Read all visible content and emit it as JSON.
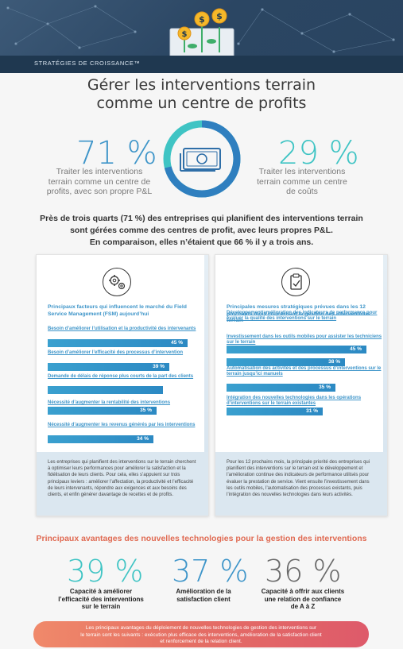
{
  "banner": {
    "label": "STRATÉGIES DE CROISSANCE™"
  },
  "title": {
    "line1": "Gérer les interventions terrain",
    "line2": "comme un centre de profits"
  },
  "stat_left": {
    "value": "71 %",
    "desc_line1": "Traiter les interventions",
    "desc_line2": "terrain comme un centre de",
    "desc_line3": "profits, avec son propre P&L"
  },
  "stat_right": {
    "value": "29 %",
    "desc_line1": "Traiter les interventions",
    "desc_line2": "terrain comme un centre",
    "desc_line3": "de coûts"
  },
  "ring_share": 0.71,
  "lead": {
    "line1": "Près de trois quarts (71 %) des entreprises qui planifient des interventions terrain",
    "line2": "sont gérées comme des centres de profit, avec leurs propres P&L.",
    "line3": "En comparaison, elles n’étaient que 66 % il y a trois ans."
  },
  "card_left": {
    "heading": "Principaux facteurs qui influencent le marché du Field Service Management (FSM) aujourd’hui",
    "items": [
      {
        "label": "Besoin d’améliorer l’utilisation et la productivité des intervenants",
        "value": 45,
        "text": "45 %"
      },
      {
        "label": "Besoin d’améliorer l’efficacité des processus d’intervention",
        "value": 39,
        "text": "39 %"
      },
      {
        "label": "Demande de délais de réponse plus courts de la part des clients",
        "value": 37,
        "text": ""
      },
      {
        "label": "Nécessité d’augmenter la rentabilité des interventions",
        "value": 35,
        "text": "35 %"
      },
      {
        "label": "Nécessité d’augmenter les revenus générés par les interventions",
        "value": 34,
        "text": "34 %"
      }
    ],
    "footer": "Les entreprises qui planifient des interventions sur le terrain cherchent à optimiser leurs performances pour améliorer la satisfaction et la fidélisation de leurs clients. Pour cela, elles s’appuient sur trois principaux leviers : améliorer l’affectation, la productivité et l’efficacité de leurs intervenants, répondre aux exigences et aux besoins des clients, et enfin générer davantage de recettes et de profits."
  },
  "card_right": {
    "heading": "Principales mesures stratégiques prévues dans les 12 prochains mois concernant la gestion des interventions terrain",
    "items": [
      {
        "label": "Développement/amélioration des indicateurs de performance pour évaluer la qualité des interventions sur le terrain",
        "value": 45,
        "text": "45 %"
      },
      {
        "label": "Investissement dans les outils mobiles pour assister les techniciens sur le terrain",
        "value": 38,
        "text": "38 %"
      },
      {
        "label": "Automatisation des activités et des processus d’interventions sur le terrain jusqu’ici manuels",
        "value": 35,
        "text": "35 %"
      },
      {
        "label": "Intégration des nouvelles technologies dans les opérations d’interventions sur le terrain existantes",
        "value": 31,
        "text": "31 %"
      }
    ],
    "footer": "Pour les 12 prochains mois, la principale priorité des entreprises qui planifient des interventions sur le terrain est le développement et l’amélioration continue des indicateurs de performance utilisés pour évaluer la prestation de service. Vient ensuite l’investissement dans les outils mobiles, l’automatisation des processus existants, puis l’intégration des nouvelles technologies dans leurs activités."
  },
  "benefits": {
    "title": "Principaux avantages des nouvelles technologies pour la gestion des interventions",
    "items": [
      {
        "value": "39 %",
        "color": "#3fc4c4",
        "line1": "Capacité à améliorer",
        "line2": "l’efficacité des interventions",
        "line3": "sur le terrain"
      },
      {
        "value": "37 %",
        "color": "#3e95c9",
        "line1": "Amélioration de la",
        "line2": "satisfaction client",
        "line3": ""
      },
      {
        "value": "36 %",
        "color": "#6a6a6a",
        "line1": "Capacité à offrir aux clients",
        "line2": "une relation de confiance",
        "line3": "de A à Z"
      }
    ]
  },
  "pill": {
    "line1": "Les principaux avantages du déploiement de nouvelles technologies de gestion des interventions sur",
    "line2": "le terrain sont les suivants : exécution plus efficace des interventions, amélioration de la satisfaction client",
    "line3": "et renforcement de la relation client."
  }
}
